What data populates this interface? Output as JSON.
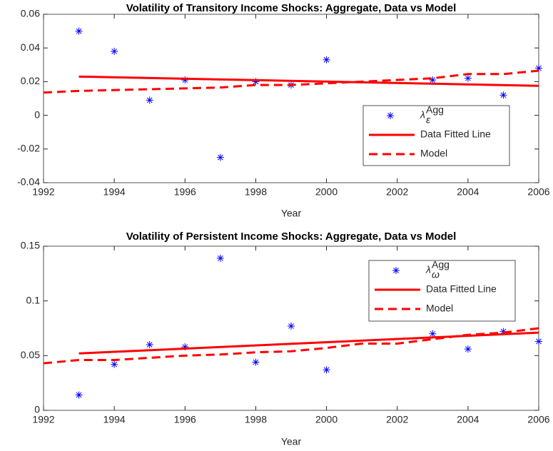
{
  "chart_data": [
    {
      "type": "scatter-line",
      "title": "Volatility of Transitory Income Shocks: Aggregate, Data vs Model",
      "xlabel": "Year",
      "xlim": [
        1992,
        2006
      ],
      "xticks": [
        1992,
        1994,
        1996,
        1998,
        2000,
        2002,
        2004,
        2006
      ],
      "ylim": [
        -0.04,
        0.06
      ],
      "yticks": [
        -0.04,
        -0.02,
        0,
        0.02,
        0.04,
        0.06
      ],
      "series": [
        {
          "name": "λ",
          "name_sub": "ε",
          "name_sup": "Agg",
          "mark": "asterisk",
          "color": "#0000ff",
          "x": [
            1993,
            1994,
            1995,
            1996,
            1997,
            1998,
            1999,
            2000,
            2003,
            2004,
            2005,
            2006
          ],
          "values": [
            0.05,
            0.038,
            0.009,
            0.021,
            -0.025,
            0.02,
            0.018,
            0.033,
            0.021,
            0.022,
            0.012,
            0.028
          ]
        },
        {
          "name": "Data Fitted Line",
          "mark": "solid",
          "color": "#ff0000",
          "x": [
            1993,
            2006
          ],
          "values": [
            0.023,
            0.0175
          ]
        },
        {
          "name": "Model",
          "mark": "dashed",
          "color": "#ff0000",
          "x": [
            1992,
            1993,
            1994,
            1995,
            1996,
            1997,
            1998,
            1999,
            2000,
            2001,
            2002,
            2003,
            2004,
            2005,
            2006
          ],
          "values": [
            0.0135,
            0.0145,
            0.015,
            0.0155,
            0.016,
            0.0165,
            0.018,
            0.018,
            0.019,
            0.02,
            0.021,
            0.022,
            0.0245,
            0.0245,
            0.0265
          ]
        }
      ]
    },
    {
      "type": "scatter-line",
      "title": "Volatility of Persistent Income Shocks: Aggregate, Data vs Model",
      "xlabel": "Year",
      "xlim": [
        1992,
        2006
      ],
      "xticks": [
        1992,
        1994,
        1996,
        1998,
        2000,
        2002,
        2004,
        2006
      ],
      "ylim": [
        0,
        0.15
      ],
      "yticks": [
        0,
        0.05,
        0.1,
        0.15
      ],
      "series": [
        {
          "name": "λ",
          "name_sub": "ω",
          "name_sup": "Agg",
          "mark": "asterisk",
          "color": "#0000ff",
          "x": [
            1993,
            1994,
            1995,
            1996,
            1997,
            1998,
            1999,
            2000,
            2003,
            2004,
            2005,
            2006
          ],
          "values": [
            0.014,
            0.042,
            0.06,
            0.058,
            0.139,
            0.044,
            0.077,
            0.037,
            0.07,
            0.056,
            0.072,
            0.063
          ]
        },
        {
          "name": "Data Fitted Line",
          "mark": "solid",
          "color": "#ff0000",
          "x": [
            1993,
            2006
          ],
          "values": [
            0.052,
            0.071
          ]
        },
        {
          "name": "Model",
          "mark": "dashed",
          "color": "#ff0000",
          "x": [
            1992,
            1993,
            1994,
            1995,
            1996,
            1997,
            1998,
            1999,
            2000,
            2001,
            2002,
            2003,
            2004,
            2005,
            2006
          ],
          "values": [
            0.043,
            0.046,
            0.046,
            0.048,
            0.05,
            0.051,
            0.053,
            0.054,
            0.057,
            0.061,
            0.061,
            0.065,
            0.069,
            0.071,
            0.075
          ]
        }
      ]
    }
  ]
}
